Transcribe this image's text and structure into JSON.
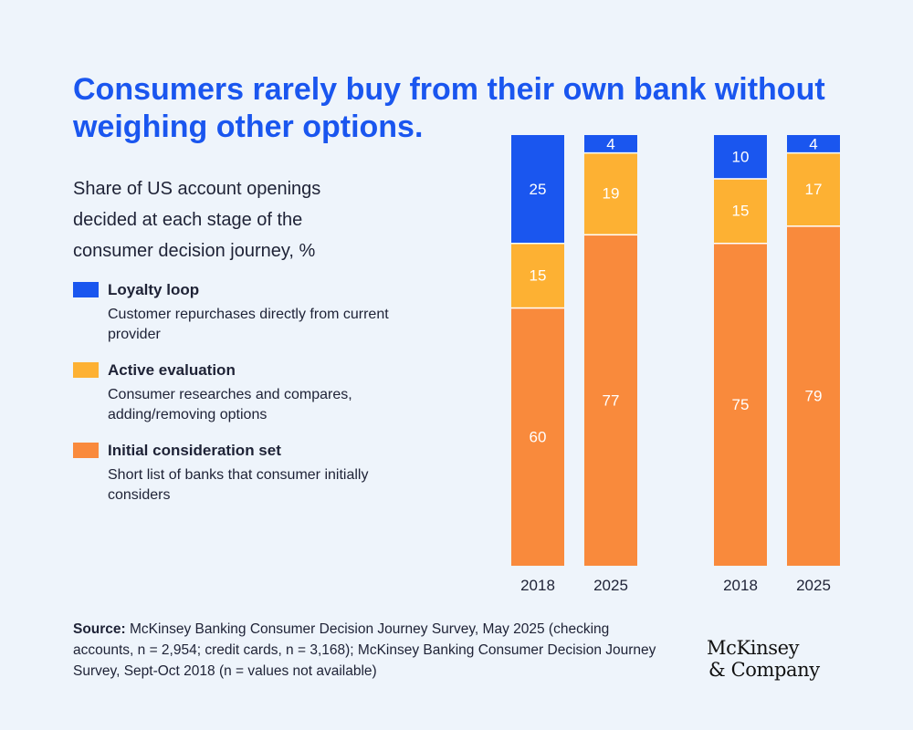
{
  "title": "Consumers rarely buy from their own bank without weighing other options.",
  "subtitle": "Share of US account openings decided at each stage of the consumer decision journey, %",
  "legend": [
    {
      "name": "Loyalty loop",
      "desc": "Customer repurchases directly from current provider",
      "color": "#1a56ef"
    },
    {
      "name": "Active evaluation",
      "desc": "Consumer researches and compares, adding/removing options",
      "color": "#fdb133"
    },
    {
      "name": "Initial consideration set",
      "desc": "Short list of banks that consumer initially considers",
      "color": "#f98a3c"
    }
  ],
  "chart_data": {
    "type": "bar",
    "stacked": true,
    "groups": [
      {
        "categories": [
          "2018",
          "2025"
        ],
        "series": [
          {
            "name": "Initial consideration set",
            "color": "#f98a3c",
            "values": [
              60,
              77
            ]
          },
          {
            "name": "Active evaluation",
            "color": "#fdb133",
            "values": [
              15,
              19
            ]
          },
          {
            "name": "Loyalty loop",
            "color": "#1a56ef",
            "values": [
              25,
              4
            ]
          }
        ]
      },
      {
        "categories": [
          "2018",
          "2025"
        ],
        "series": [
          {
            "name": "Initial consideration set",
            "color": "#f98a3c",
            "values": [
              75,
              79
            ]
          },
          {
            "name": "Active evaluation",
            "color": "#fdb133",
            "values": [
              15,
              17
            ]
          },
          {
            "name": "Loyalty loop",
            "color": "#1a56ef",
            "values": [
              10,
              4
            ]
          }
        ]
      }
    ],
    "ylim": [
      0,
      100
    ],
    "xlabel": "",
    "ylabel": ""
  },
  "source": {
    "label": "Source:",
    "text": " McKinsey Banking Consumer Decision Journey Survey, May 2025 (checking accounts, n = 2,954; credit cards, n = 3,168); McKinsey Banking Consumer Decision Journey Survey, Sept-Oct 2018 (n = values not available)"
  },
  "logo": {
    "line1": "McKinsey",
    "line2": "& Company"
  }
}
